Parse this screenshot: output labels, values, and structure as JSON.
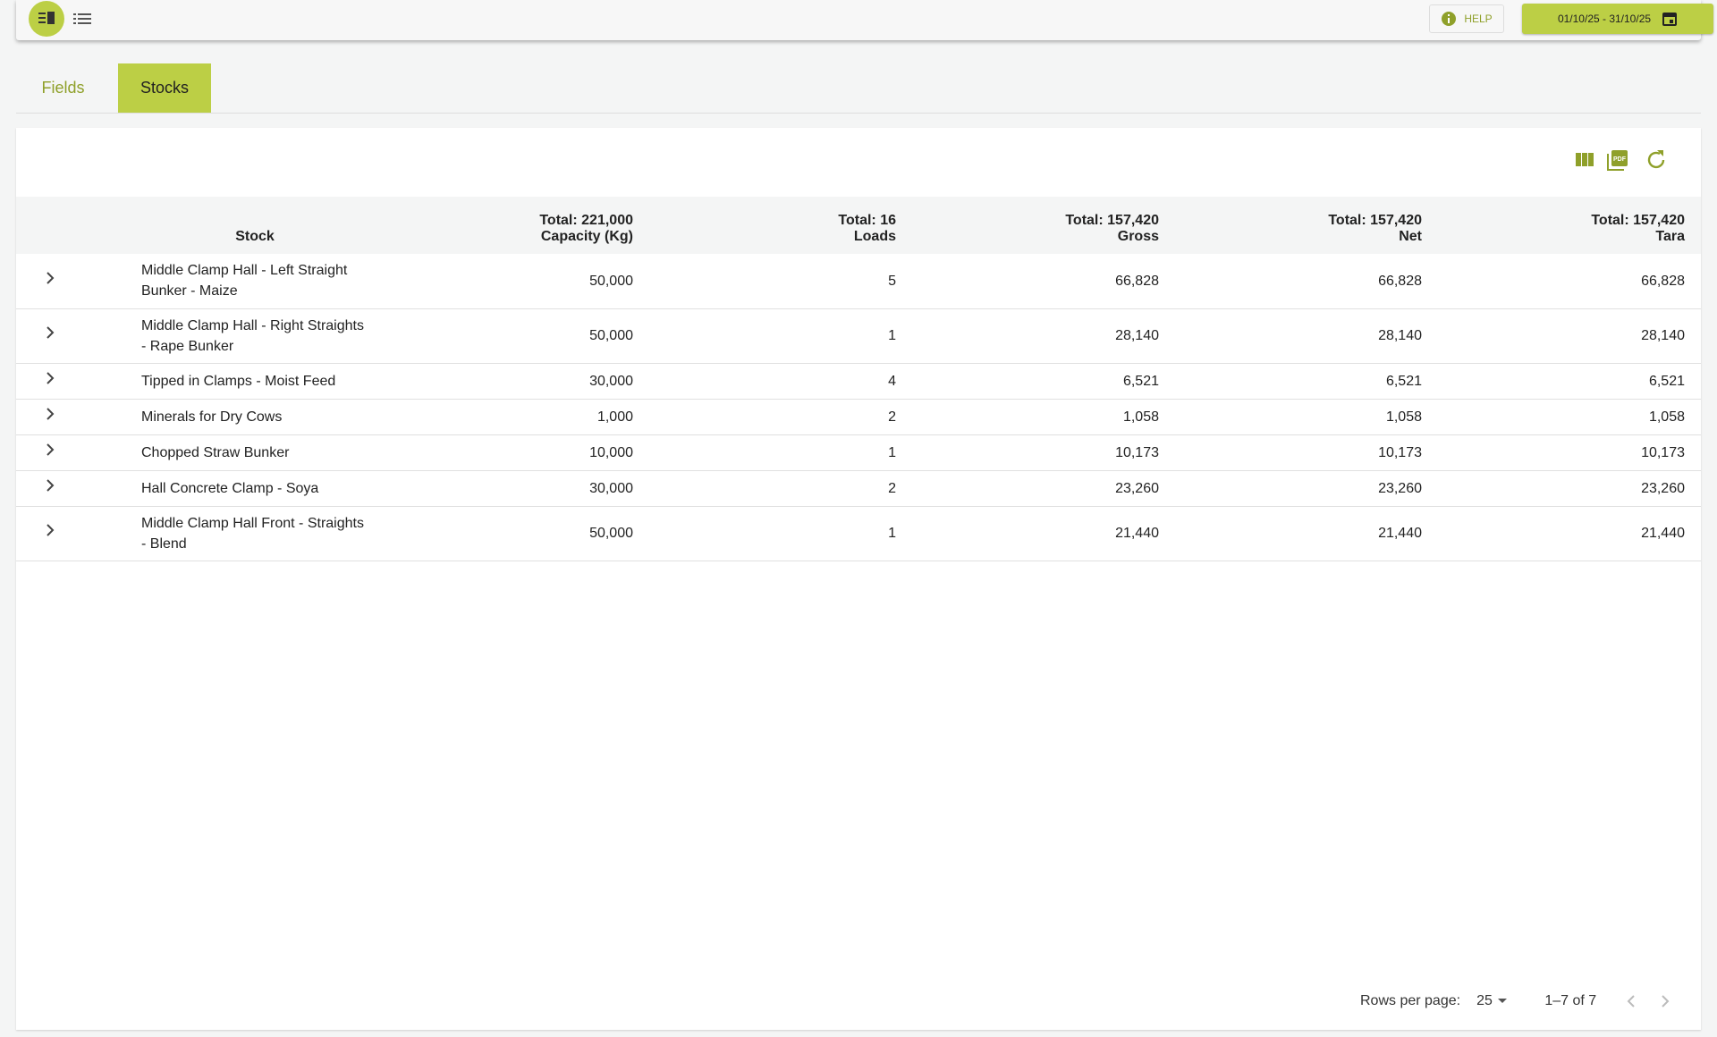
{
  "toolbar": {
    "help": "HELP",
    "date_range": "01/10/25 - 31/10/25"
  },
  "tabs": [
    "Fields",
    "Stocks"
  ],
  "table": {
    "total_prefix": "Total:",
    "stock_header": "Stock",
    "columns": [
      {
        "label": "Capacity (Kg)",
        "total": "221,000"
      },
      {
        "label": "Loads",
        "total": "16"
      },
      {
        "label": "Gross",
        "total": "157,420"
      },
      {
        "label": "Net",
        "total": "157,420"
      },
      {
        "label": "Tara",
        "total": "157,420"
      }
    ],
    "rows": [
      [
        "Middle Clamp Hall - Left Straight Bunker - Maize",
        "50,000",
        "5",
        "66,828",
        "66,828",
        "66,828"
      ],
      [
        "Middle Clamp Hall - Right Straights - Rape Bunker",
        "50,000",
        "1",
        "28,140",
        "28,140",
        "28,140"
      ],
      [
        "Tipped in Clamps - Moist Feed",
        "30,000",
        "4",
        "6,521",
        "6,521",
        "6,521"
      ],
      [
        "Minerals for Dry Cows",
        "1,000",
        "2",
        "1,058",
        "1,058",
        "1,058"
      ],
      [
        "Chopped Straw Bunker",
        "10,000",
        "1",
        "10,173",
        "10,173",
        "10,173"
      ],
      [
        "Hall Concrete Clamp - Soya",
        "30,000",
        "2",
        "23,260",
        "23,260",
        "23,260"
      ],
      [
        "Middle Clamp Hall Front - Straights - Blend",
        "50,000",
        "1",
        "21,440",
        "21,440",
        "21,440"
      ]
    ]
  },
  "pagination": {
    "rows_per_page_label": "Rows per page:",
    "rows_per_page": "25",
    "range": "1–7 of 7"
  }
}
